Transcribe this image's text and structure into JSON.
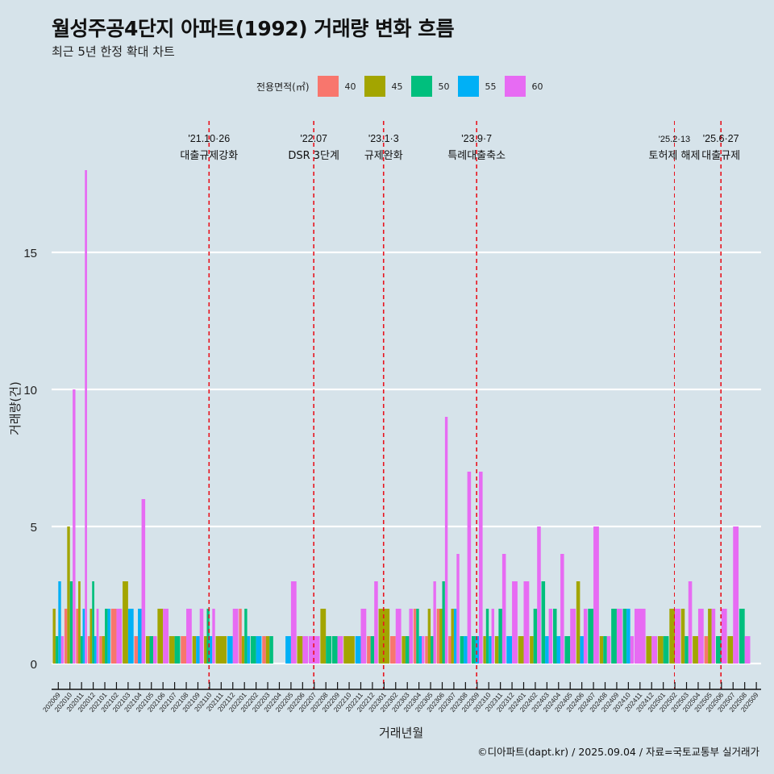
{
  "title": "월성주공4단지 아파트(1992) 거래량 변화 흐름",
  "subtitle": "최근 5년 한정 확대 차트",
  "caption": "©디아파트(dapt.kr) / 2025.09.04 / 자료=국토교통부 실거래가",
  "legend": {
    "title": "전용면적(㎡)",
    "items": [
      {
        "label": "40",
        "color": "#F8766D"
      },
      {
        "label": "45",
        "color": "#A3A500"
      },
      {
        "label": "50",
        "color": "#00BF7D"
      },
      {
        "label": "55",
        "color": "#00B0F6"
      },
      {
        "label": "60",
        "color": "#E76BF3"
      }
    ]
  },
  "chart_data": {
    "type": "bar",
    "title": "월성주공4단지 아파트(1992) 거래량 변화 흐름",
    "subtitle": "최근 5년 한정 확대 차트",
    "xlabel": "거래년월",
    "ylabel": "거래량(건)",
    "ylim": [
      0,
      18
    ],
    "yticks": [
      0,
      5,
      10,
      15
    ],
    "grid": "horizontal",
    "legend_position": "top",
    "categories": [
      "202009",
      "202010",
      "202011",
      "202012",
      "202101",
      "202102",
      "202103",
      "202104",
      "202105",
      "202106",
      "202107",
      "202108",
      "202109",
      "202110",
      "202111",
      "202112",
      "202201",
      "202202",
      "202203",
      "202204",
      "202205",
      "202206",
      "202207",
      "202208",
      "202209",
      "202210",
      "202211",
      "202212",
      "202301",
      "202302",
      "202303",
      "202304",
      "202305",
      "202306",
      "202307",
      "202308",
      "202309",
      "202310",
      "202311",
      "202312",
      "202401",
      "202402",
      "202403",
      "202404",
      "202405",
      "202406",
      "202407",
      "202408",
      "202409",
      "202410",
      "202411",
      "202412",
      "202501",
      "202502",
      "202503",
      "202504",
      "202505",
      "202506",
      "202507",
      "202508",
      "202509"
    ],
    "series": [
      {
        "name": "40",
        "values": [
          0,
          2,
          2,
          1,
          1,
          2,
          0,
          1,
          0,
          0,
          0,
          1,
          0,
          0,
          0,
          0,
          2,
          0,
          1,
          0,
          0,
          0,
          0,
          0,
          0,
          0,
          0,
          1,
          0,
          1,
          0,
          2,
          1,
          2,
          1,
          0,
          0,
          0,
          0,
          0,
          0,
          0,
          0,
          0,
          0,
          0,
          0,
          0,
          0,
          0,
          0,
          0,
          0,
          0,
          0,
          0,
          1,
          0,
          0,
          0,
          0
        ]
      },
      {
        "name": "45",
        "values": [
          2,
          5,
          3,
          2,
          1,
          0,
          3,
          0,
          1,
          2,
          1,
          0,
          1,
          1,
          1,
          0,
          1,
          0,
          1,
          0,
          0,
          1,
          0,
          2,
          0,
          1,
          0,
          0,
          2,
          0,
          1,
          0,
          2,
          2,
          2,
          0,
          0,
          1,
          1,
          0,
          1,
          1,
          0,
          0,
          0,
          3,
          0,
          1,
          0,
          0,
          0,
          1,
          1,
          2,
          2,
          1,
          2,
          0,
          1,
          0,
          0
        ]
      },
      {
        "name": "50",
        "values": [
          1,
          3,
          1,
          3,
          2,
          0,
          0,
          0,
          1,
          0,
          1,
          0,
          0,
          2,
          0,
          0,
          2,
          1,
          1,
          0,
          0,
          0,
          0,
          1,
          1,
          0,
          0,
          1,
          0,
          0,
          1,
          2,
          1,
          3,
          0,
          1,
          1,
          2,
          2,
          0,
          0,
          2,
          3,
          2,
          1,
          0,
          2,
          1,
          2,
          2,
          0,
          0,
          1,
          0,
          1,
          0,
          0,
          1,
          0,
          2,
          0
        ]
      },
      {
        "name": "55",
        "values": [
          3,
          0,
          2,
          1,
          2,
          0,
          2,
          2,
          0,
          0,
          0,
          0,
          1,
          1,
          0,
          1,
          1,
          1,
          0,
          0,
          1,
          0,
          0,
          0,
          0,
          0,
          1,
          0,
          0,
          0,
          0,
          1,
          0,
          0,
          2,
          1,
          1,
          1,
          0,
          1,
          0,
          0,
          1,
          1,
          0,
          1,
          0,
          0,
          0,
          2,
          0,
          0,
          0,
          0,
          0,
          0,
          0,
          0,
          0,
          0,
          0
        ]
      },
      {
        "name": "60",
        "values": [
          1,
          10,
          18,
          2,
          0,
          2,
          0,
          6,
          1,
          2,
          0,
          2,
          2,
          2,
          0,
          2,
          0,
          0,
          0,
          0,
          3,
          1,
          1,
          0,
          1,
          0,
          2,
          3,
          0,
          2,
          2,
          1,
          3,
          9,
          4,
          7,
          7,
          2,
          4,
          3,
          3,
          5,
          2,
          4,
          2,
          2,
          5,
          1,
          2,
          1,
          2,
          1,
          0,
          2,
          3,
          2,
          2,
          2,
          5,
          1,
          0
        ]
      }
    ],
    "annotations": [
      {
        "date_label": "'21.10·26",
        "event": "대출규제강화",
        "month": "202110"
      },
      {
        "date_label": "'22.07",
        "event": "DSR 3단계",
        "month": "202207"
      },
      {
        "date_label": "'23.1·3",
        "event": "규제완화",
        "month": "202301"
      },
      {
        "date_label": "'23.9·7",
        "event": "특례대출축소",
        "month": "202309"
      },
      {
        "date_label": "'25.2·13",
        "event": "토허제 해제",
        "month": "202502"
      },
      {
        "date_label": "'25.6·27",
        "event": "대출규제",
        "month": "202506"
      }
    ]
  }
}
